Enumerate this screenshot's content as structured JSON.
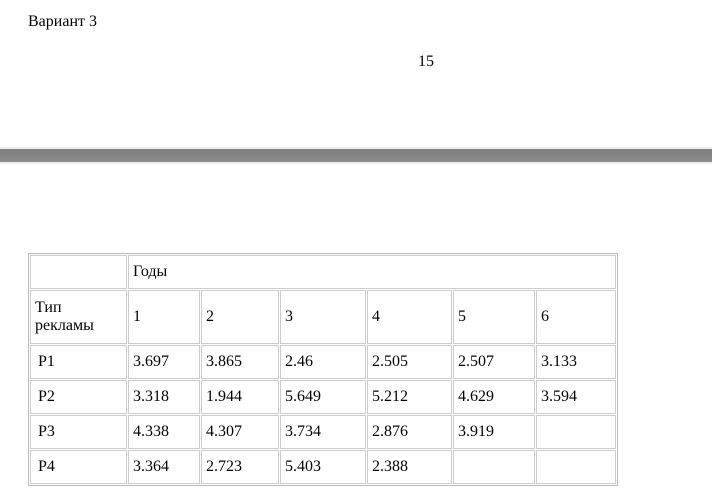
{
  "heading": "Вариант 3",
  "page_number": "15",
  "table": {
    "corner": "",
    "group_header": "Годы",
    "row_header_label": "Тип рекламы",
    "years": [
      "1",
      "2",
      "3",
      "4",
      "5",
      "6"
    ],
    "rows": [
      {
        "label": "P1",
        "values": [
          "3.697",
          "3.865",
          "2.46",
          "2.505",
          "2.507",
          "3.133"
        ]
      },
      {
        "label": "P2",
        "values": [
          "3.318",
          "1.944",
          "5.649",
          "5.212",
          "4.629",
          "3.594"
        ]
      },
      {
        "label": "P3",
        "values": [
          "4.338",
          "4.307",
          "3.734",
          "2.876",
          "3.919",
          ""
        ]
      },
      {
        "label": "P4",
        "values": [
          "3.364",
          "2.723",
          "5.403",
          "2.388",
          "",
          ""
        ]
      }
    ]
  }
}
